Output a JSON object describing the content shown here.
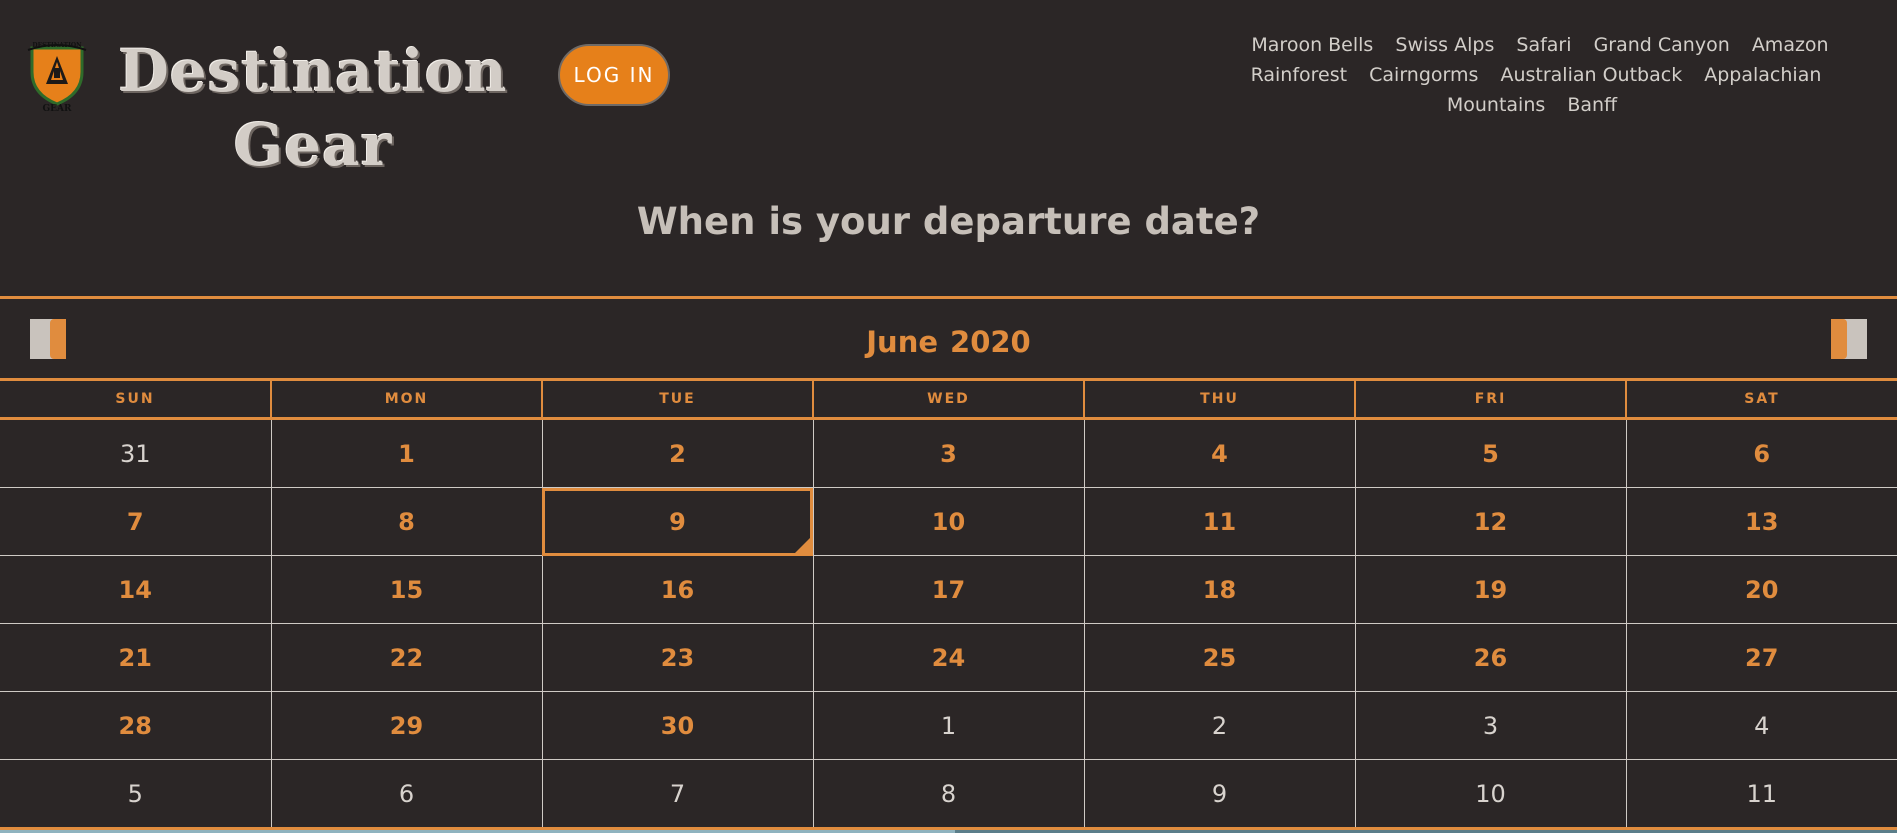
{
  "header": {
    "logo_text": "DESTINATION GEAR",
    "brand_line1": "Destination",
    "brand_line2": "Gear",
    "login_label": "LOG IN",
    "nav_links": [
      "Maroon Bells",
      "Swiss Alps",
      "Safari",
      "Grand Canyon",
      "Amazon Rainforest",
      "Cairngorms",
      "Australian Outback",
      "Appalachian Mountains",
      "Banff"
    ]
  },
  "question": "When is your departure date?",
  "calendar": {
    "month": "June",
    "year": "2020",
    "selected_day": "9",
    "weekdays": [
      "SUN",
      "MON",
      "TUE",
      "WED",
      "THU",
      "FRI",
      "SAT"
    ],
    "weeks": [
      [
        {
          "d": "31",
          "m": "out"
        },
        {
          "d": "1",
          "m": "in"
        },
        {
          "d": "2",
          "m": "in"
        },
        {
          "d": "3",
          "m": "in"
        },
        {
          "d": "4",
          "m": "in"
        },
        {
          "d": "5",
          "m": "in"
        },
        {
          "d": "6",
          "m": "in"
        }
      ],
      [
        {
          "d": "7",
          "m": "in"
        },
        {
          "d": "8",
          "m": "in"
        },
        {
          "d": "9",
          "m": "in"
        },
        {
          "d": "10",
          "m": "in"
        },
        {
          "d": "11",
          "m": "in"
        },
        {
          "d": "12",
          "m": "in"
        },
        {
          "d": "13",
          "m": "in"
        }
      ],
      [
        {
          "d": "14",
          "m": "in"
        },
        {
          "d": "15",
          "m": "in"
        },
        {
          "d": "16",
          "m": "in"
        },
        {
          "d": "17",
          "m": "in"
        },
        {
          "d": "18",
          "m": "in"
        },
        {
          "d": "19",
          "m": "in"
        },
        {
          "d": "20",
          "m": "in"
        }
      ],
      [
        {
          "d": "21",
          "m": "in"
        },
        {
          "d": "22",
          "m": "in"
        },
        {
          "d": "23",
          "m": "in"
        },
        {
          "d": "24",
          "m": "in"
        },
        {
          "d": "25",
          "m": "in"
        },
        {
          "d": "26",
          "m": "in"
        },
        {
          "d": "27",
          "m": "in"
        }
      ],
      [
        {
          "d": "28",
          "m": "in"
        },
        {
          "d": "29",
          "m": "in"
        },
        {
          "d": "30",
          "m": "in"
        },
        {
          "d": "1",
          "m": "out"
        },
        {
          "d": "2",
          "m": "out"
        },
        {
          "d": "3",
          "m": "out"
        },
        {
          "d": "4",
          "m": "out"
        }
      ],
      [
        {
          "d": "5",
          "m": "out"
        },
        {
          "d": "6",
          "m": "out"
        },
        {
          "d": "7",
          "m": "out"
        },
        {
          "d": "8",
          "m": "out"
        },
        {
          "d": "9",
          "m": "out"
        },
        {
          "d": "10",
          "m": "out"
        },
        {
          "d": "11",
          "m": "out"
        }
      ]
    ]
  },
  "colors": {
    "background": "#2b2626",
    "accent": "#e08c3e",
    "login_button": "#e6801a",
    "muted_text": "#d2cec9"
  }
}
